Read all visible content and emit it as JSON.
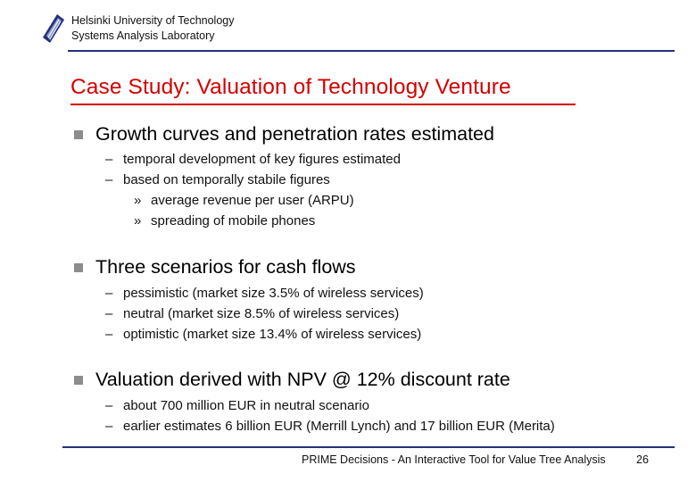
{
  "header": {
    "org_line1": "Helsinki University of Technology",
    "org_line2": "Systems Analysis Laboratory"
  },
  "title": "Case Study: Valuation of Technology Venture",
  "bullets": [
    {
      "text": "Growth curves and penetration rates estimated",
      "subs": [
        "temporal development of key figures estimated",
        "based on temporally stabile figures"
      ],
      "subsubs": [
        "average revenue per user (ARPU)",
        "spreading of mobile phones"
      ]
    },
    {
      "text": "Three scenarios for cash flows",
      "subs": [
        "pessimistic (market size 3.5% of wireless services)",
        "neutral (market size 8.5% of wireless services)",
        "optimistic (market size 13.4% of wireless services)"
      ]
    },
    {
      "text": "Valuation derived with NPV @ 12% discount rate",
      "subs": [
        "about 700 million EUR in neutral scenario",
        "earlier estimates 6 billion EUR (Merrill Lynch) and 17 billion EUR (Merita)"
      ]
    }
  ],
  "footer": {
    "text": "PRIME Decisions - An Interactive Tool for Value Tree Analysis",
    "page": "26"
  },
  "colors": {
    "title": "#d40000",
    "rule": "#26307a",
    "bullet": "#8c8c8c"
  },
  "icons": {
    "logo": "university-logo-icon"
  }
}
